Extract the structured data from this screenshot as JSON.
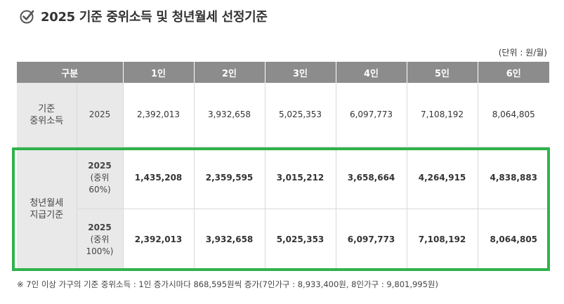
{
  "title": "2025 기준 중위소득 및 청년월세 선정기준",
  "unit_note": "(단위 : 원/월)",
  "table": {
    "headers": [
      "구분",
      "1인",
      "2인",
      "3인",
      "4인",
      "5인",
      "6인"
    ],
    "rows": [
      {
        "category_line1": "기준",
        "category_line2": "중위소득",
        "sub_year": "2025",
        "values": [
          "2,392,013",
          "3,932,658",
          "5,025,353",
          "6,097,773",
          "7,108,192",
          "8,064,805"
        ]
      },
      {
        "category_line1": "청년월세",
        "category_line2": "지급기준",
        "sub_year": "2025",
        "sub_note1": "(중위",
        "sub_note2": "60%)",
        "values": [
          "1,435,208",
          "2,359,595",
          "3,015,212",
          "3,658,664",
          "4,264,915",
          "4,838,883"
        ]
      },
      {
        "sub_year": "2025",
        "sub_note1": "(중위",
        "sub_note2": "100%)",
        "values": [
          "2,392,013",
          "3,932,658",
          "5,025,353",
          "6,097,773",
          "7,108,192",
          "8,064,805"
        ]
      }
    ]
  },
  "highlight_color": "#2fb24c",
  "footnote": "※ 7인 이상 가구의 기준 중위소득 : 1인 증가시마다 868,595원씩 증가(7인가구 : 8,933,400원, 8인가구 : 9,801,995원)"
}
